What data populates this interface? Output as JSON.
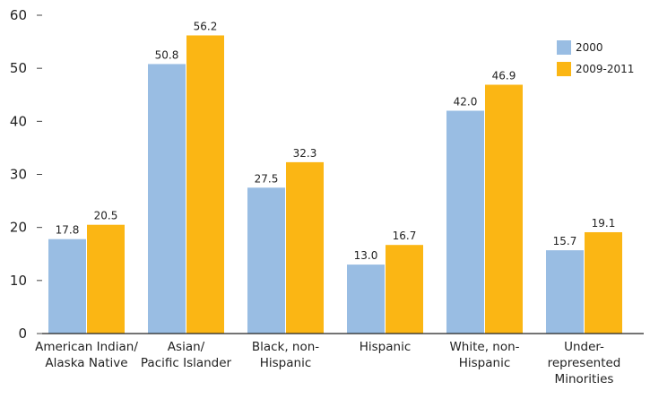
{
  "chart_data": {
    "type": "bar",
    "title": "",
    "xlabel": "",
    "ylabel": "",
    "ylim": [
      0,
      60
    ],
    "yticks": [
      0,
      10,
      20,
      30,
      40,
      50,
      60
    ],
    "grid": false,
    "legend_position": "top-right",
    "categories": [
      [
        "American Indian/",
        "Alaska Native"
      ],
      [
        "Asian/",
        "Pacific Islander"
      ],
      [
        "Black, non-",
        "Hispanic"
      ],
      [
        "Hispanic"
      ],
      [
        "White, non-",
        "Hispanic"
      ],
      [
        "Under-",
        "represented",
        "Minorities"
      ]
    ],
    "series": [
      {
        "name": "2000",
        "color": "#99bde3",
        "values": [
          17.8,
          50.8,
          27.5,
          13.0,
          42.0,
          15.7
        ]
      },
      {
        "name": "2009-2011",
        "color": "#fbb614",
        "values": [
          20.5,
          56.2,
          32.3,
          16.7,
          46.9,
          19.1
        ]
      }
    ]
  }
}
